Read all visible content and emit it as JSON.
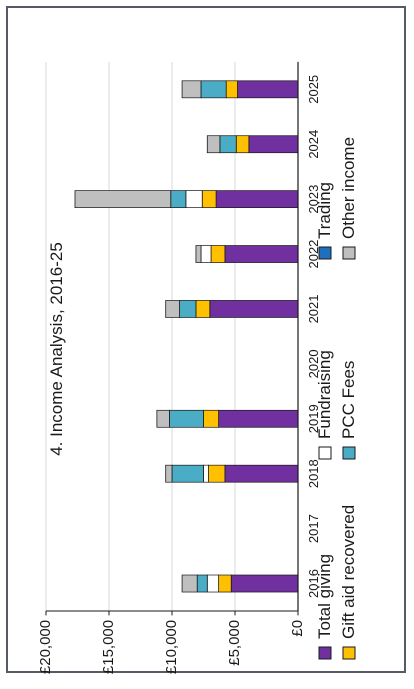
{
  "chart_data": {
    "type": "bar",
    "stacked": true,
    "title": "4. Income Analysis, 2016-25",
    "xlabel": "",
    "ylabel": "",
    "categories": [
      "2016",
      "2017",
      "2018",
      "2019",
      "2020",
      "2021",
      "2022",
      "2023",
      "2024",
      "2025"
    ],
    "ylim": [
      0,
      20000
    ],
    "yticks": [
      0,
      5000,
      10000,
      15000,
      20000
    ],
    "ytick_labels": [
      "£0",
      "£5,000",
      "£10,000",
      "£15,000",
      "£20,000"
    ],
    "grid": true,
    "legend_position": "bottom",
    "series": [
      {
        "name": "Total giving",
        "color": "#7030a0",
        "values": [
          5300,
          0,
          5800,
          6300,
          0,
          7000,
          5800,
          6500,
          3900,
          4800
        ]
      },
      {
        "name": "Gift aid recovered",
        "color": "#ffc000",
        "values": [
          1000,
          0,
          1300,
          1200,
          0,
          1100,
          1100,
          1100,
          1000,
          900
        ]
      },
      {
        "name": "Fundraising",
        "color": "#ffffff",
        "values": [
          900,
          0,
          400,
          0,
          0,
          0,
          800,
          1300,
          0,
          0
        ]
      },
      {
        "name": "PCC Fees",
        "color": "#4bacc6",
        "values": [
          800,
          0,
          2500,
          2700,
          0,
          1300,
          0,
          1200,
          1300,
          2000
        ]
      },
      {
        "name": "Trading",
        "color": "#1f6fbf",
        "values": [
          0,
          0,
          0,
          0,
          0,
          0,
          0,
          0,
          0,
          0
        ]
      },
      {
        "name": "Other income",
        "color": "#bfbfbf",
        "values": [
          1200,
          0,
          500,
          1000,
          0,
          1100,
          400,
          7600,
          1000,
          1500
        ]
      }
    ]
  }
}
